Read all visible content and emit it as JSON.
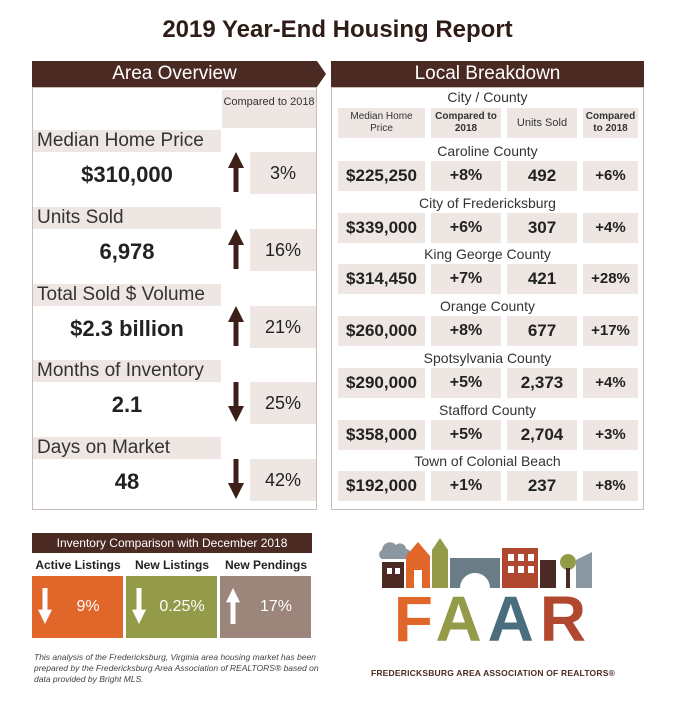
{
  "title": "2019 Year-End Housing Report",
  "area": {
    "header": "Area Overview",
    "compared_label": "Compared to 2018",
    "rows": [
      {
        "label": "Median Home Price",
        "value": "$310,000",
        "direction": "up",
        "pct": "3%"
      },
      {
        "label": "Units Sold",
        "value": "6,978",
        "direction": "up",
        "pct": "16%"
      },
      {
        "label": "Total Sold $ Volume",
        "value": "$2.3 billion",
        "direction": "up",
        "pct": "21%"
      },
      {
        "label": "Months of Inventory",
        "value": "2.1",
        "direction": "down",
        "pct": "25%"
      },
      {
        "label": "Days on Market",
        "value": "48",
        "direction": "down",
        "pct": "42%"
      }
    ]
  },
  "local": {
    "header": "Local Breakdown",
    "subheader": "City / County",
    "col_median": "Median Home Price",
    "col_compared": "Compared to 2018",
    "col_units": "Units Sold",
    "col_compared2": "Compared to 2018",
    "rows": [
      {
        "name": "Caroline County",
        "median": "$225,250",
        "median_pct": "+8%",
        "units": "492",
        "units_pct": "+6%"
      },
      {
        "name": "City of Fredericksburg",
        "median": "$339,000",
        "median_pct": "+6%",
        "units": "307",
        "units_pct": "+4%"
      },
      {
        "name": "King George County",
        "median": "$314,450",
        "median_pct": "+7%",
        "units": "421",
        "units_pct": "+28%"
      },
      {
        "name": "Orange County",
        "median": "$260,000",
        "median_pct": "+8%",
        "units": "677",
        "units_pct": "+17%"
      },
      {
        "name": "Spotsylvania County",
        "median": "$290,000",
        "median_pct": "+5%",
        "units": "2,373",
        "units_pct": "+4%"
      },
      {
        "name": "Stafford County",
        "median": "$358,000",
        "median_pct": "+5%",
        "units": "2,704",
        "units_pct": "+3%"
      },
      {
        "name": "Town of Colonial Beach",
        "median": "$192,000",
        "median_pct": "+1%",
        "units": "237",
        "units_pct": "+8%"
      }
    ]
  },
  "inventory": {
    "header": "Inventory Comparison with December 2018",
    "items": [
      {
        "label": "Active Listings",
        "direction": "down",
        "pct": "9%",
        "color": "#e0662a"
      },
      {
        "label": "New Listings",
        "direction": "down",
        "pct": "0.25%",
        "color": "#939a48"
      },
      {
        "label": "New Pendings",
        "direction": "up",
        "pct": "17%",
        "color": "#9c857b"
      }
    ]
  },
  "note": "This analysis of the Fredericksburg, Virginia area housing market has been prepared by the Fredericksburg Area Association of REALTORS® based on data provided by Bright MLS.",
  "logo": {
    "letters": [
      "F",
      "A",
      "A",
      "R"
    ],
    "letter_colors": [
      "#e0662a",
      "#939a48",
      "#4a6e7e",
      "#b0482f"
    ],
    "tagline": "FREDERICKSBURG AREA ASSOCIATION OF REALTORS®"
  },
  "colors": {
    "brown": "#4a2a22",
    "shade": "#ede6e3"
  }
}
